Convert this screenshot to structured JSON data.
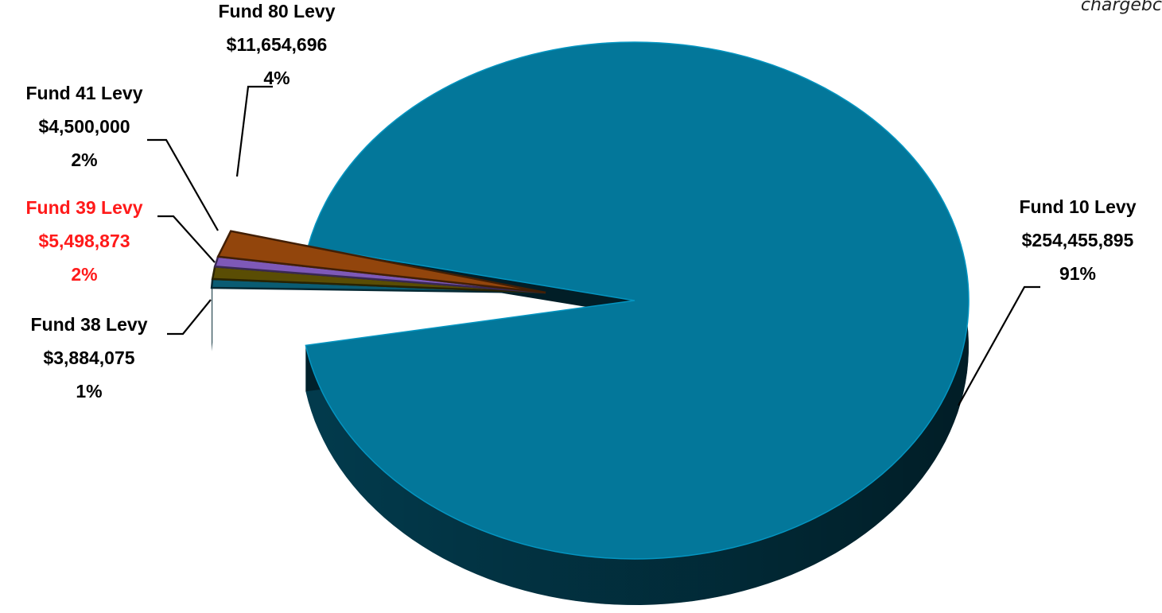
{
  "corner_note": "chargebc",
  "colors": {
    "fund10": "#03779a",
    "fund38": "#0a5c73",
    "fund39": "#5a4d04",
    "fund41": "#7e59b8",
    "fund80": "#92450c",
    "label_default": "#000000",
    "label_highlight": "#ff1a1a",
    "leader": "#000000"
  },
  "chart_data": {
    "type": "pie",
    "style": "3d exploded",
    "legend": "none",
    "slices": [
      {
        "key": "fund10",
        "label": "Fund 10 Levy",
        "value": 254455895,
        "value_text": "$254,455,895",
        "percent_text": "91%",
        "highlight": false
      },
      {
        "key": "fund38",
        "label": "Fund 38 Levy",
        "value": 3884075,
        "value_text": "$3,884,075",
        "percent_text": "1%",
        "highlight": false
      },
      {
        "key": "fund39",
        "label": "Fund 39 Levy",
        "value": 5498873,
        "value_text": "$5,498,873",
        "percent_text": "2%",
        "highlight": true
      },
      {
        "key": "fund41",
        "label": "Fund 41 Levy",
        "value": 4500000,
        "value_text": "$4,500,000",
        "percent_text": "2%",
        "highlight": false
      },
      {
        "key": "fund80",
        "label": "Fund 80 Levy",
        "value": 11654696,
        "value_text": "$11,654,696",
        "percent_text": "4%",
        "highlight": false
      }
    ]
  }
}
